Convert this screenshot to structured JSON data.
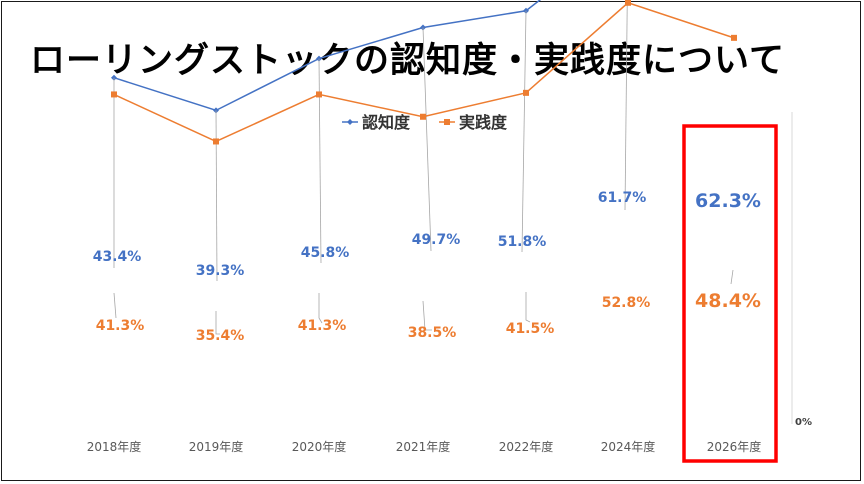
{
  "title": "ローリングストックの認知度・実践度について",
  "chart_data": {
    "type": "line",
    "categories": [
      "2018年度",
      "2019年度",
      "2020年度",
      "2021年度",
      "2022年度",
      "2024年度",
      "2026年度"
    ],
    "series": [
      {
        "name": "認知度",
        "color": "#4472C4",
        "values": [
          43.4,
          39.3,
          45.8,
          49.7,
          51.8,
          61.7,
          62.3
        ],
        "labels": [
          "43.4%",
          "39.3%",
          "45.8%",
          "49.7%",
          "51.8%",
          "61.7%",
          "62.3%"
        ]
      },
      {
        "name": "実践度",
        "color": "#ED7D31",
        "values": [
          41.3,
          35.4,
          41.3,
          38.5,
          41.5,
          52.8,
          48.4
        ],
        "labels": [
          "41.3%",
          "35.4%",
          "41.3%",
          "38.5%",
          "41.5%",
          "52.8%",
          "48.4%"
        ]
      }
    ],
    "y_axis_tick": "0%",
    "legend_position": "top",
    "grid": false,
    "highlight": {
      "category": "2026年度",
      "color": "#FF0000"
    }
  }
}
